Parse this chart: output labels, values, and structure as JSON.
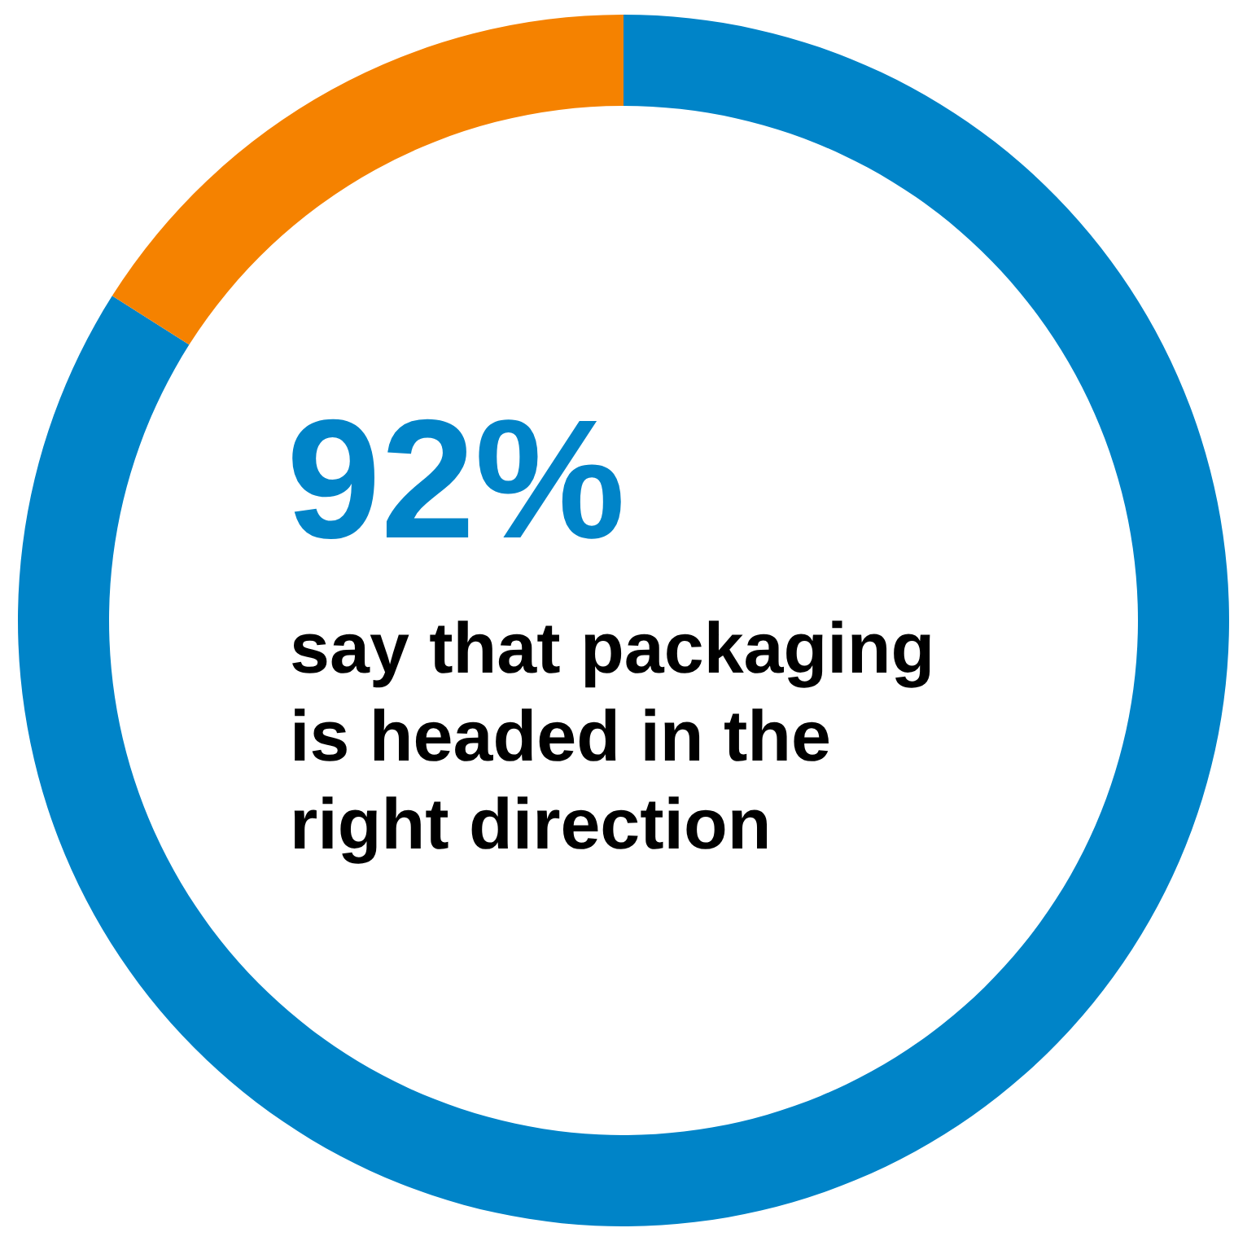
{
  "chart_data": {
    "type": "donut",
    "title": "92%",
    "subtitle": "say that packaging is headed in the right direction",
    "categories": [
      null,
      null
    ],
    "values": [
      84,
      16
    ],
    "colors": [
      "#0084c8",
      "#f58200"
    ]
  }
}
